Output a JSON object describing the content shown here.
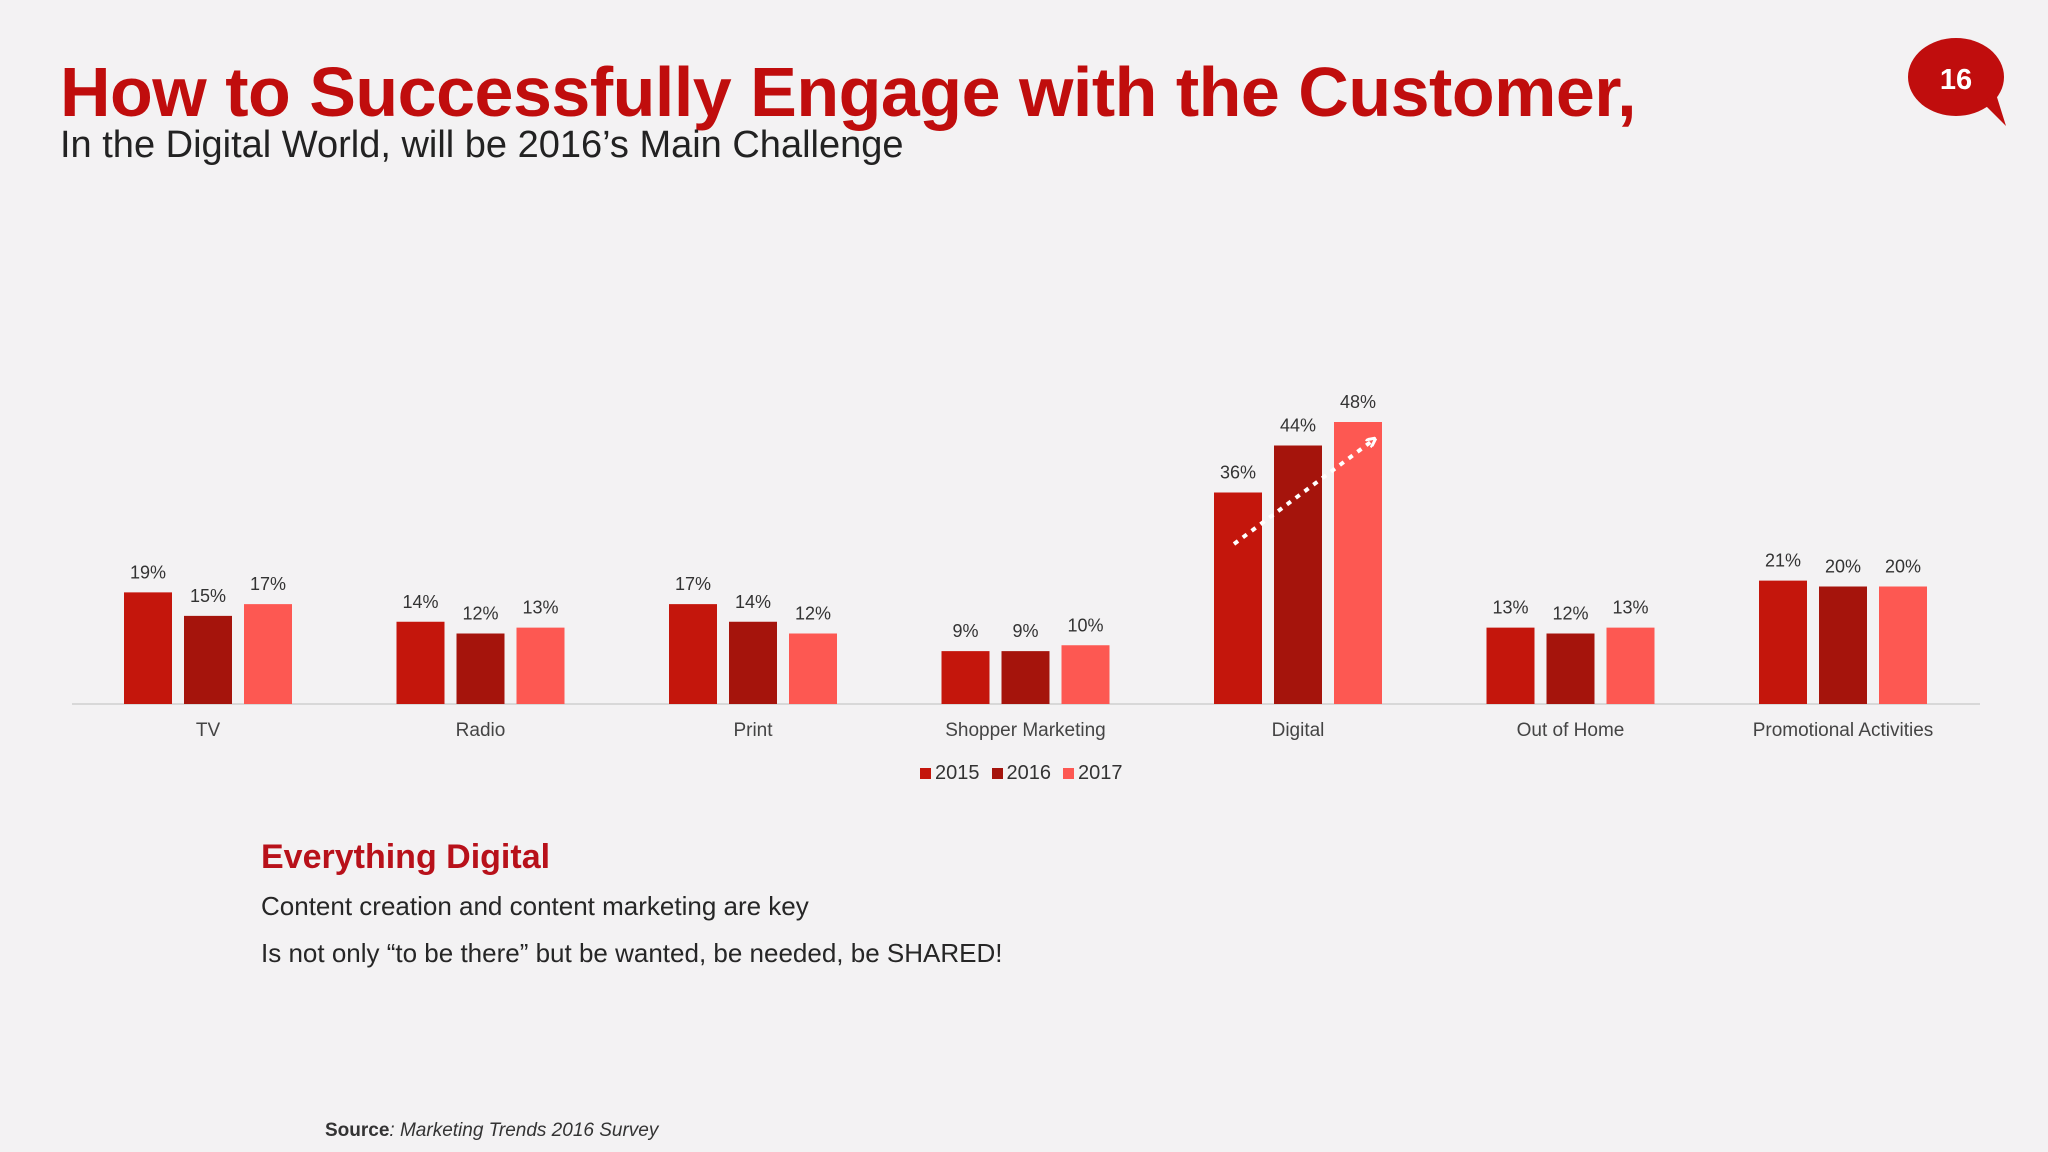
{
  "slide": {
    "title": "How to Successfully Engage with the Customer,",
    "subtitle": "In the Digital World, will be 2016’s Main Challenge",
    "page_number": "16",
    "accent_color": "#c00d0d"
  },
  "chart_data": {
    "type": "bar",
    "categories": [
      "TV",
      "Radio",
      "Print",
      "Shopper Marketing",
      "Digital",
      "Out of Home",
      "Promotional Activities"
    ],
    "series": [
      {
        "name": "2015",
        "color": "#c4160c",
        "values": [
          19,
          14,
          17,
          9,
          36,
          13,
          21
        ],
        "labels": [
          "19%",
          "14%",
          "17%",
          "9%",
          "36%",
          "13%",
          "21%"
        ]
      },
      {
        "name": "2016",
        "color": "#a5140c",
        "values": [
          15,
          12,
          14,
          9,
          44,
          12,
          20
        ],
        "labels": [
          "15%",
          "12%",
          "14%",
          "9%",
          "44%",
          "12%",
          "20%"
        ]
      },
      {
        "name": "2017",
        "color": "#fd5852",
        "values": [
          17,
          13,
          12,
          10,
          48,
          13,
          20
        ],
        "labels": [
          "17%",
          "13%",
          "12%",
          "10%",
          "48%",
          "13%",
          "20%"
        ]
      }
    ],
    "ylim": [
      0,
      50
    ],
    "grid": false,
    "legend_position": "bottom-center"
  },
  "notes": {
    "heading": "Everything Digital",
    "lines": [
      "Content creation and content marketing are key",
      "Is not only “to be there” but be wanted, be needed, be SHARED!"
    ]
  },
  "source": {
    "label": "Source",
    "text": ": Marketing Trends 2016 Survey"
  }
}
